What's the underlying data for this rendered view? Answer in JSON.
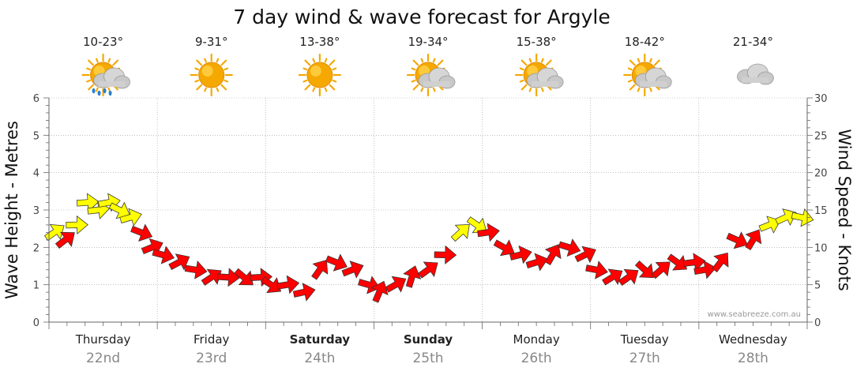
{
  "title": "7 day wind & wave forecast for Argyle",
  "credit": "www.seabreeze.com.au",
  "left_axis_title": "Wave Height - Metres",
  "right_axis_title": "Wind Speed - Knots",
  "days": [
    {
      "name": "Thursday",
      "date": "22nd",
      "temp": "10-23°",
      "icon": "sun-cloud-rain-icon",
      "bold": false
    },
    {
      "name": "Friday",
      "date": "23rd",
      "temp": "9-31°",
      "icon": "sun-icon",
      "bold": false
    },
    {
      "name": "Saturday",
      "date": "24th",
      "temp": "13-38°",
      "icon": "sun-icon",
      "bold": true
    },
    {
      "name": "Sunday",
      "date": "25th",
      "temp": "19-34°",
      "icon": "sun-cloud-icon",
      "bold": true
    },
    {
      "name": "Monday",
      "date": "26th",
      "temp": "15-38°",
      "icon": "sun-cloud-icon",
      "bold": false
    },
    {
      "name": "Tuesday",
      "date": "27th",
      "temp": "18-42°",
      "icon": "sun-cloud-icon",
      "bold": false
    },
    {
      "name": "Wednesday",
      "date": "28th",
      "temp": "21-34°",
      "icon": "cloud-icon",
      "bold": false
    }
  ],
  "colors": {
    "moderate_wind": "#ffff00",
    "light_wind": "#ff0000",
    "arrow_outline": "#333333",
    "grid": "#999999",
    "sun": "#f5a800",
    "cloud": "#c8c8c8",
    "rain": "#2a7fd0"
  },
  "chart_data": {
    "type": "line",
    "x_unit": "day (0 = start of Thursday 22nd)",
    "left_axis": {
      "label": "Wave Height - Metres",
      "ylim": [
        0,
        6
      ],
      "ticks": [
        0,
        1,
        2,
        3,
        4,
        5,
        6
      ]
    },
    "right_axis": {
      "label": "Wind Speed - Knots",
      "ylim": [
        0,
        30
      ],
      "ticks": [
        0,
        5,
        10,
        15,
        20,
        25,
        30
      ]
    },
    "grid": true,
    "series": [
      {
        "name": "Wind Speed - Knots",
        "axis": "right",
        "x": [
          0.0,
          0.1,
          0.2,
          0.3,
          0.4,
          0.5,
          0.6,
          0.7,
          0.8,
          0.9,
          1.0,
          1.15,
          1.3,
          1.45,
          1.6,
          1.75,
          1.9,
          2.0,
          2.15,
          2.3,
          2.45,
          2.6,
          2.75,
          2.9,
          3.0,
          3.15,
          3.3,
          3.45,
          3.6,
          3.75,
          3.9,
          4.0,
          4.15,
          4.3,
          4.45,
          4.6,
          4.75,
          4.9,
          5.0,
          5.15,
          5.3,
          5.45,
          5.6,
          5.75,
          5.9,
          6.0,
          6.15,
          6.3,
          6.45,
          6.6,
          6.75,
          6.9
        ],
        "values": [
          12,
          11,
          13,
          16,
          15,
          16,
          15,
          14,
          12,
          10,
          9,
          8,
          7,
          6,
          6,
          6,
          6,
          5,
          5,
          4,
          7,
          8,
          7,
          5,
          4,
          5,
          6,
          7,
          9,
          12,
          13,
          12,
          10,
          9,
          8,
          9,
          10,
          9,
          7,
          6,
          6,
          7,
          7,
          8,
          8,
          7,
          8,
          11,
          11,
          13,
          14,
          14
        ],
        "colors": [
          "yellow",
          "red",
          "yellow",
          "yellow",
          "yellow",
          "yellow",
          "yellow",
          "yellow",
          "red",
          "red",
          "red",
          "red",
          "red",
          "red",
          "red",
          "red",
          "red",
          "red",
          "red",
          "red",
          "red",
          "red",
          "red",
          "red",
          "red",
          "red",
          "red",
          "red",
          "red",
          "yellow",
          "yellow",
          "red",
          "red",
          "red",
          "red",
          "red",
          "red",
          "red",
          "red",
          "red",
          "red",
          "red",
          "red",
          "red",
          "red",
          "red",
          "red",
          "red",
          "red",
          "yellow",
          "yellow",
          "yellow"
        ]
      }
    ],
    "categories": [
      "Thursday 22nd",
      "Friday 23rd",
      "Saturday 24th",
      "Sunday 25th",
      "Monday 26th",
      "Tuesday 27th",
      "Wednesday 28th"
    ]
  }
}
